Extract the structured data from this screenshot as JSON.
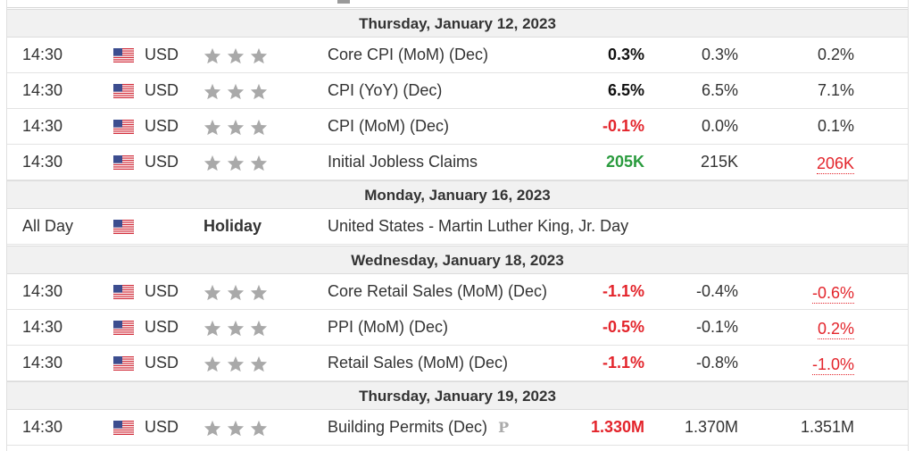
{
  "dates": [
    {
      "label": "Thursday, January 12, 2023"
    },
    {
      "label": "Monday, January 16, 2023"
    },
    {
      "label": "Wednesday, January 18, 2023"
    },
    {
      "label": "Thursday, January 19, 2023"
    }
  ],
  "colors": {
    "positive": "#2a9b3e",
    "negative": "#e3242b",
    "star": "#a9a9a9",
    "date_row_bg": "#f1f1f1"
  },
  "events": [
    {
      "time": "14:30",
      "flag": "us-flag-icon",
      "currency": "USD",
      "importance": 3,
      "event": "Core CPI (MoM) (Dec)",
      "actual": "0.3%",
      "actual_status": "neutral",
      "forecast": "0.3%",
      "previous": "0.2%",
      "previous_revised": false
    },
    {
      "time": "14:30",
      "flag": "us-flag-icon",
      "currency": "USD",
      "importance": 3,
      "event": "CPI (YoY) (Dec)",
      "actual": "6.5%",
      "actual_status": "neutral",
      "forecast": "6.5%",
      "previous": "7.1%",
      "previous_revised": false
    },
    {
      "time": "14:30",
      "flag": "us-flag-icon",
      "currency": "USD",
      "importance": 3,
      "event": "CPI (MoM) (Dec)",
      "actual": "-0.1%",
      "actual_status": "negative",
      "forecast": "0.0%",
      "previous": "0.1%",
      "previous_revised": false
    },
    {
      "time": "14:30",
      "flag": "us-flag-icon",
      "currency": "USD",
      "importance": 3,
      "event": "Initial Jobless Claims",
      "actual": "205K",
      "actual_status": "positive",
      "forecast": "215K",
      "previous": "206K",
      "previous_revised": true
    },
    {
      "time": "All Day",
      "flag": "us-flag-icon",
      "holiday_label": "Holiday",
      "event": "United States - Martin Luther King, Jr. Day"
    },
    {
      "time": "14:30",
      "flag": "us-flag-icon",
      "currency": "USD",
      "importance": 3,
      "event": "Core Retail Sales (MoM) (Dec)",
      "actual": "-1.1%",
      "actual_status": "negative",
      "forecast": "-0.4%",
      "previous": "-0.6%",
      "previous_revised": true
    },
    {
      "time": "14:30",
      "flag": "us-flag-icon",
      "currency": "USD",
      "importance": 3,
      "event": "PPI (MoM) (Dec)",
      "actual": "-0.5%",
      "actual_status": "negative",
      "forecast": "-0.1%",
      "previous": "0.2%",
      "previous_revised": true
    },
    {
      "time": "14:30",
      "flag": "us-flag-icon",
      "currency": "USD",
      "importance": 3,
      "event": "Retail Sales (MoM) (Dec)",
      "actual": "-1.1%",
      "actual_status": "negative",
      "forecast": "-0.8%",
      "previous": "-1.0%",
      "previous_revised": true
    },
    {
      "time": "14:30",
      "flag": "us-flag-icon",
      "currency": "USD",
      "importance": 3,
      "event": "Building Permits (Dec)",
      "event_badge": "P",
      "actual": "1.330M",
      "actual_status": "negative",
      "forecast": "1.370M",
      "previous": "1.351M",
      "previous_revised": false
    }
  ]
}
